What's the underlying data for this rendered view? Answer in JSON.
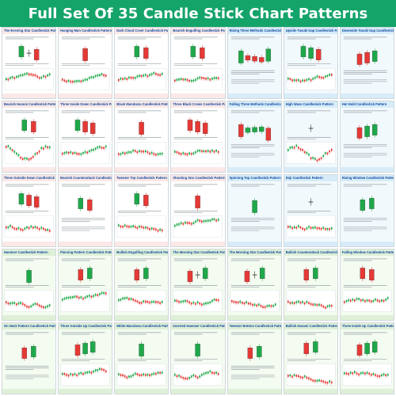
{
  "page": {
    "title": "Full Set Of 35 Candle Stick Chart Patterns"
  },
  "colors": {
    "brand_green": "#14a46a",
    "bull": "#1fa84a",
    "bear": "#e53935",
    "bullish_bg": "#ffffff",
    "bullish_head": "#fbe9e7",
    "bullish_foot": "#fbe9e7",
    "neutral_bg": "#f2f9fd",
    "neutral_head": "#d7ecf8",
    "neutral_foot": "#d7ecf8",
    "green_bg": "#f4fbf1",
    "green_head": "#dff0d8",
    "green_foot": "#dff0d8"
  },
  "cards": [
    {
      "title": "The Evening Star Candlestick Pattern",
      "theme": "bullish",
      "style": "three",
      "seq": [
        "g",
        "d",
        "r"
      ],
      "chart": "trend"
    },
    {
      "title": "Hanging Man Candlestick Pattern",
      "theme": "bullish",
      "style": "single",
      "seq": [
        "r"
      ],
      "chart": "trend"
    },
    {
      "title": "Dark Cloud Cover Candlestick Pattern",
      "theme": "bullish",
      "style": "pair",
      "seq": [
        "g",
        "r"
      ],
      "chart": "trend"
    },
    {
      "title": "Bearish Engulfing Candlestick Pattern",
      "theme": "bullish",
      "style": "pair",
      "seq": [
        "g",
        "r"
      ],
      "chart": "trend"
    },
    {
      "title": "Rising Three Methods Candlestick Pattern",
      "theme": "neutral",
      "style": "methods",
      "seq": [
        "g",
        "r",
        "r",
        "r",
        "g"
      ],
      "chart": "none"
    },
    {
      "title": "Upside Tasuki Gap Candlestick Pattern",
      "theme": "neutral",
      "style": "three",
      "seq": [
        "g",
        "g",
        "r"
      ],
      "chart": "trend"
    },
    {
      "title": "Downside Tasuki Gap Candlestick Pattern",
      "theme": "neutral",
      "style": "three",
      "seq": [
        "r",
        "r",
        "g"
      ],
      "chart": "none"
    },
    {
      "title": "Bearish Harami Candlestick Pattern",
      "theme": "bullish",
      "style": "pair",
      "seq": [
        "g",
        "r"
      ],
      "chart": "wave"
    },
    {
      "title": "Three Inside Down Candlestick Pattern",
      "theme": "bullish",
      "style": "three",
      "seq": [
        "g",
        "r",
        "r"
      ],
      "chart": "trend"
    },
    {
      "title": "Black Marubozu Candlestick Pattern",
      "theme": "bullish",
      "style": "single",
      "seq": [
        "r"
      ],
      "chart": "trend"
    },
    {
      "title": "Three Black Crows Candlestick Pattern",
      "theme": "bullish",
      "style": "three",
      "seq": [
        "r",
        "r",
        "r"
      ],
      "chart": "trend"
    },
    {
      "title": "Falling Three Methods Candlestick Pattern",
      "theme": "neutral",
      "style": "methods",
      "seq": [
        "r",
        "g",
        "g",
        "g",
        "r"
      ],
      "chart": "none"
    },
    {
      "title": "High Wave Candlestick Pattern",
      "theme": "neutral",
      "style": "single",
      "seq": [
        "d"
      ],
      "chart": "wave"
    },
    {
      "title": "Hot Hold Candlestick Pattern",
      "theme": "neutral",
      "style": "three",
      "seq": [
        "r",
        "g",
        "g"
      ],
      "chart": "none"
    },
    {
      "title": "Three Outside Down Candlestick Pattern",
      "theme": "bullish",
      "style": "three",
      "seq": [
        "g",
        "r",
        "r"
      ],
      "chart": "trend"
    },
    {
      "title": "Bearish Counterattack Candlestick Pattern",
      "theme": "bullish",
      "style": "pair",
      "seq": [
        "g",
        "r"
      ],
      "chart": "none"
    },
    {
      "title": "Tweezer Top Candlestick Pattern",
      "theme": "bullish",
      "style": "pair",
      "seq": [
        "g",
        "r"
      ],
      "chart": "trend"
    },
    {
      "title": "Shooting Star Candlestick Pattern",
      "theme": "bullish",
      "style": "single",
      "seq": [
        "r"
      ],
      "chart": "trend"
    },
    {
      "title": "Spinning Top Candlestick Pattern",
      "theme": "neutral",
      "style": "single",
      "seq": [
        "g"
      ],
      "chart": "none"
    },
    {
      "title": "Doji Candlestick Pattern",
      "theme": "neutral",
      "style": "single",
      "seq": [
        "d"
      ],
      "chart": "trend"
    },
    {
      "title": "Rising Window Candlestick Pattern",
      "theme": "neutral",
      "style": "pair",
      "seq": [
        "g",
        "g"
      ],
      "chart": "none"
    },
    {
      "title": "Hammer Candlestick Pattern",
      "theme": "green",
      "style": "single",
      "seq": [
        "g"
      ],
      "chart": "trend"
    },
    {
      "title": "Piercing Pattern Candlestick Pattern",
      "theme": "green",
      "style": "pair",
      "seq": [
        "r",
        "g"
      ],
      "chart": "trend"
    },
    {
      "title": "Bullish Engulfing Candlestick Pattern",
      "theme": "green",
      "style": "pair",
      "seq": [
        "r",
        "g"
      ],
      "chart": "trend"
    },
    {
      "title": "The Morning Star Candlestick Pattern",
      "theme": "green",
      "style": "three",
      "seq": [
        "r",
        "d",
        "g"
      ],
      "chart": "trend"
    },
    {
      "title": "The Morning Star Candlestick Pattern",
      "theme": "green",
      "style": "three",
      "seq": [
        "r",
        "d",
        "g"
      ],
      "chart": "trend"
    },
    {
      "title": "Bullish Counterattack Candlestick Pattern",
      "theme": "green",
      "style": "pair",
      "seq": [
        "r",
        "g"
      ],
      "chart": "trend"
    },
    {
      "title": "Falling Window Candlestick Pattern",
      "theme": "green",
      "style": "pair",
      "seq": [
        "r",
        "r"
      ],
      "chart": "trend"
    },
    {
      "title": "On Neck Pattern Candlestick Patterns",
      "theme": "green",
      "style": "pair",
      "seq": [
        "r",
        "g"
      ],
      "chart": "none"
    },
    {
      "title": "Three Outside Up Candlestick Patterns",
      "theme": "green",
      "style": "three",
      "seq": [
        "r",
        "g",
        "g"
      ],
      "chart": "trend"
    },
    {
      "title": "White Marubozu Candlestick Patterns",
      "theme": "green",
      "style": "single",
      "seq": [
        "g"
      ],
      "chart": "trend"
    },
    {
      "title": "Inverted Hammer Candlestick Patterns",
      "theme": "green",
      "style": "single",
      "seq": [
        "g"
      ],
      "chart": "trend"
    },
    {
      "title": "Tweezer Bottom Candlestick Patterns",
      "theme": "green",
      "style": "pair",
      "seq": [
        "r",
        "g"
      ],
      "chart": "none"
    },
    {
      "title": "Bullish Harami Candlestick Patterns",
      "theme": "green",
      "style": "pair",
      "seq": [
        "r",
        "g"
      ],
      "chart": "trend"
    },
    {
      "title": "Three Inside Up Candlestick Patterns",
      "theme": "green",
      "style": "three",
      "seq": [
        "r",
        "g",
        "g"
      ],
      "chart": "trend"
    }
  ]
}
